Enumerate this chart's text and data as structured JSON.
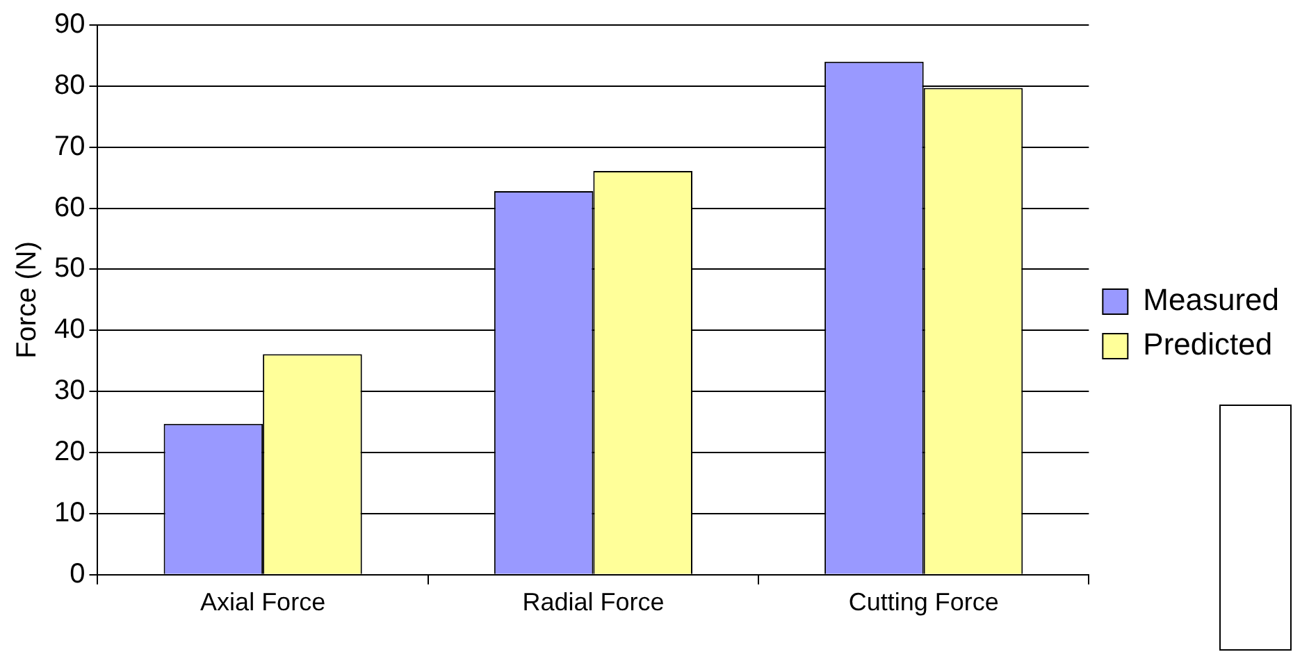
{
  "chart_data": {
    "type": "bar",
    "ylabel": "Force (N)",
    "categories": [
      "Axial Force",
      "Radial Force",
      "Cutting Force"
    ],
    "series": [
      {
        "name": "Measured",
        "color": "#9999ff",
        "values": [
          24.7,
          62.8,
          84.0
        ]
      },
      {
        "name": "Predicted",
        "color": "#ffff99",
        "values": [
          36.1,
          66.1,
          79.7
        ]
      }
    ],
    "ylim": [
      0,
      90
    ],
    "yticks": [
      0,
      10,
      20,
      30,
      40,
      50,
      60,
      70,
      80,
      90
    ],
    "grid": "y",
    "legend": "right"
  }
}
